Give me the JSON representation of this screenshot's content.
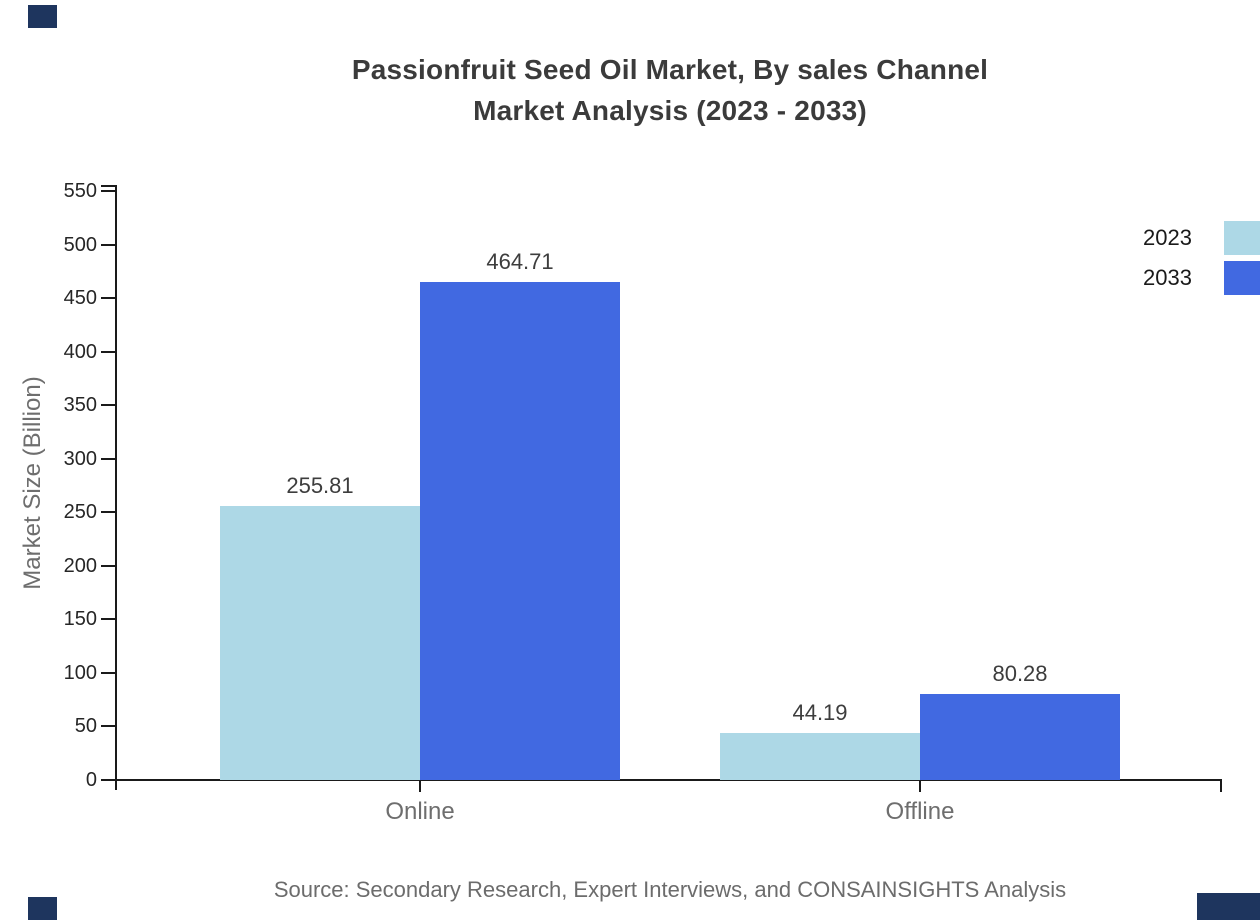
{
  "title": {
    "line1": "Passionfruit Seed Oil Market, By sales Channel",
    "line2": "Market Analysis (2023 - 2033)"
  },
  "source_note": "Source: Secondary Research, Expert Interviews, and CONSAINSIGHTS Analysis",
  "legend": {
    "items": [
      {
        "label": "2023",
        "color": "#add8e6"
      },
      {
        "label": "2033",
        "color": "#4169e1"
      }
    ]
  },
  "colors": {
    "accent_navy": "#1e355e",
    "axis": "#1a1a1a",
    "series_2023": "#add8e6",
    "series_2033": "#4169e1"
  },
  "chart_data": {
    "type": "bar",
    "title": "Passionfruit Seed Oil Market, By sales Channel Market Analysis (2023 - 2033)",
    "categories": [
      "Online",
      "Offline"
    ],
    "series": [
      {
        "name": "2023",
        "color": "#add8e6",
        "values": [
          255.81,
          44.19
        ]
      },
      {
        "name": "2033",
        "color": "#4169e1",
        "values": [
          464.71,
          80.28
        ]
      }
    ],
    "xlabel": "",
    "ylabel": "Market Size (Billion)",
    "ylim": [
      0,
      550
    ],
    "yticks": [
      0,
      50,
      100,
      150,
      200,
      250,
      300,
      350,
      400,
      450,
      500,
      550
    ],
    "grid": false,
    "legend_position": "right",
    "value_labels": true,
    "value_label_format": "0.00"
  }
}
